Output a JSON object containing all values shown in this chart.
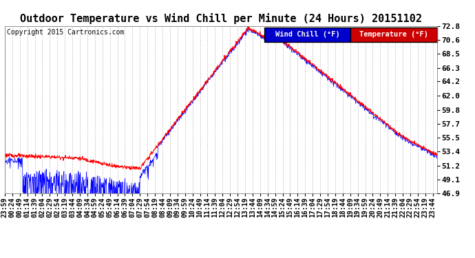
{
  "title": "Outdoor Temperature vs Wind Chill per Minute (24 Hours) 20151102",
  "copyright": "Copyright 2015 Cartronics.com",
  "ylim": [
    46.9,
    72.8
  ],
  "yticks": [
    46.9,
    49.1,
    51.2,
    53.4,
    55.5,
    57.7,
    59.8,
    62.0,
    64.2,
    66.3,
    68.5,
    70.6,
    72.8
  ],
  "background_color": "#ffffff",
  "plot_bg_color": "#ffffff",
  "grid_color": "#c0c0c0",
  "temp_color": "#ff0000",
  "wc_color": "#0000ff",
  "legend_wc_label": "Wind Chill (°F)",
  "legend_temp_label": "Temperature (°F)",
  "legend_wc_bg": "#0000cc",
  "legend_temp_bg": "#cc0000",
  "title_fontsize": 11,
  "copyright_fontsize": 7,
  "tick_fontsize": 7,
  "legend_fontsize": 7.5,
  "n_minutes": 1440,
  "tick_interval": 25
}
